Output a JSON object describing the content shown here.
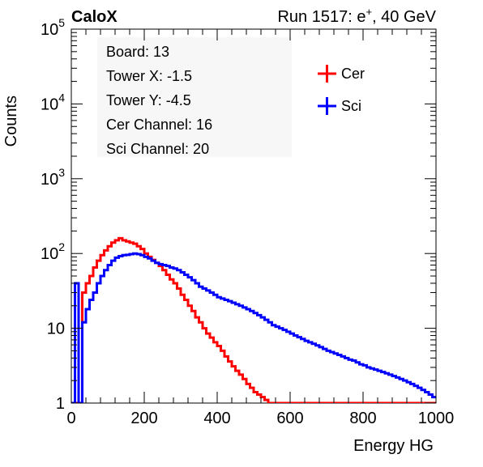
{
  "chart_data": {
    "type": "line",
    "title_left": "CaloX",
    "title_right": {
      "prefix": "Run 1517: e",
      "superscript": "+",
      "suffix": ", 40 GeV"
    },
    "xlabel": "Energy HG",
    "ylabel": "Counts",
    "xlim": [
      0,
      1000
    ],
    "ylim": [
      1,
      100000
    ],
    "yscale": "log",
    "grid": false,
    "x_ticks": [
      "0",
      "200",
      "400",
      "600",
      "800",
      "1000"
    ],
    "y_ticks": {
      "1": "1",
      "10": "10",
      "100": "10^2",
      "1000": "10^3",
      "10000": "10^4",
      "100000": "10^5"
    },
    "info_box": [
      "Board: 13",
      "Tower X: -1.5",
      "Tower Y: -4.5",
      "Cer Channel: 16",
      "Sci Channel: 20"
    ],
    "legend_position": "top-right",
    "series": [
      {
        "name": "Cer",
        "color": "#ff0000",
        "x": [
          0,
          10,
          20,
          30,
          40,
          50,
          60,
          70,
          80,
          90,
          100,
          110,
          120,
          130,
          140,
          150,
          160,
          170,
          180,
          190,
          200,
          210,
          220,
          230,
          240,
          250,
          260,
          270,
          280,
          290,
          300,
          310,
          320,
          330,
          340,
          350,
          360,
          370,
          380,
          390,
          400,
          410,
          420,
          430,
          440,
          450,
          460,
          470,
          480,
          490,
          500,
          510,
          520,
          530,
          540,
          550,
          560,
          570,
          580,
          590,
          600,
          610,
          620,
          630,
          640,
          650,
          660,
          670,
          680,
          690,
          700,
          710,
          720,
          730,
          740,
          750,
          760,
          770,
          780,
          790,
          800,
          810,
          820,
          830,
          840,
          850,
          860,
          870,
          880,
          890,
          900,
          910,
          920,
          930,
          940,
          950,
          960,
          970,
          980,
          990
        ],
        "values": [
          1,
          1,
          1,
          30,
          40,
          50,
          65,
          80,
          95,
          110,
          125,
          140,
          150,
          160,
          150,
          145,
          140,
          135,
          125,
          115,
          100,
          90,
          82,
          75,
          68,
          60,
          52,
          45,
          40,
          34,
          28,
          24,
          20,
          17,
          14,
          12,
          10,
          8.5,
          7.5,
          6.5,
          5.8,
          5,
          4.2,
          3.6,
          3.1,
          2.7,
          2.4,
          2.1,
          1.8,
          1.6,
          1.4,
          1.3,
          1.2,
          1.1,
          1,
          1,
          1,
          1,
          1,
          1,
          1,
          1,
          1,
          1,
          1,
          1,
          1,
          1,
          1,
          1,
          1,
          1,
          1,
          1,
          1,
          1,
          1,
          1,
          1,
          1,
          1,
          1,
          1,
          1,
          1,
          1,
          1,
          1,
          1,
          1,
          1,
          1,
          1,
          1,
          1,
          1,
          1,
          1,
          1,
          1
        ]
      },
      {
        "name": "Sci",
        "color": "#0000ff",
        "x": [
          0,
          10,
          20,
          30,
          40,
          50,
          60,
          70,
          80,
          90,
          100,
          110,
          120,
          130,
          140,
          150,
          160,
          170,
          180,
          190,
          200,
          210,
          220,
          230,
          240,
          250,
          260,
          270,
          280,
          290,
          300,
          310,
          320,
          330,
          340,
          350,
          360,
          370,
          380,
          390,
          400,
          410,
          420,
          430,
          440,
          450,
          460,
          470,
          480,
          490,
          500,
          510,
          520,
          530,
          540,
          550,
          560,
          570,
          580,
          590,
          600,
          610,
          620,
          630,
          640,
          650,
          660,
          670,
          680,
          690,
          700,
          710,
          720,
          730,
          740,
          750,
          760,
          770,
          780,
          790,
          800,
          810,
          820,
          830,
          840,
          850,
          860,
          870,
          880,
          890,
          900,
          910,
          920,
          930,
          940,
          950,
          960,
          970,
          980,
          990
        ],
        "values": [
          1,
          40,
          1,
          12,
          18,
          24,
          30,
          40,
          50,
          60,
          70,
          80,
          88,
          92,
          95,
          96,
          98,
          100,
          98,
          95,
          90,
          86,
          80,
          75,
          72,
          70,
          68,
          65,
          63,
          60,
          56,
          52,
          48,
          44,
          40,
          36,
          34,
          32,
          30,
          28,
          26,
          25,
          24,
          23,
          22,
          21,
          20,
          19,
          18,
          17,
          16,
          15,
          14,
          13,
          12,
          11,
          10.5,
          10,
          9.5,
          9,
          8.5,
          8,
          7.6,
          7.2,
          6.8,
          6.5,
          6.2,
          5.9,
          5.6,
          5.3,
          5,
          4.8,
          4.6,
          4.4,
          4.2,
          4,
          3.8,
          3.7,
          3.5,
          3.3,
          3.2,
          3,
          2.9,
          2.8,
          2.7,
          2.6,
          2.5,
          2.4,
          2.3,
          2.2,
          2.1,
          2,
          1.9,
          1.8,
          1.7,
          1.6,
          1.5,
          1.4,
          1.3,
          1.2
        ]
      }
    ]
  }
}
